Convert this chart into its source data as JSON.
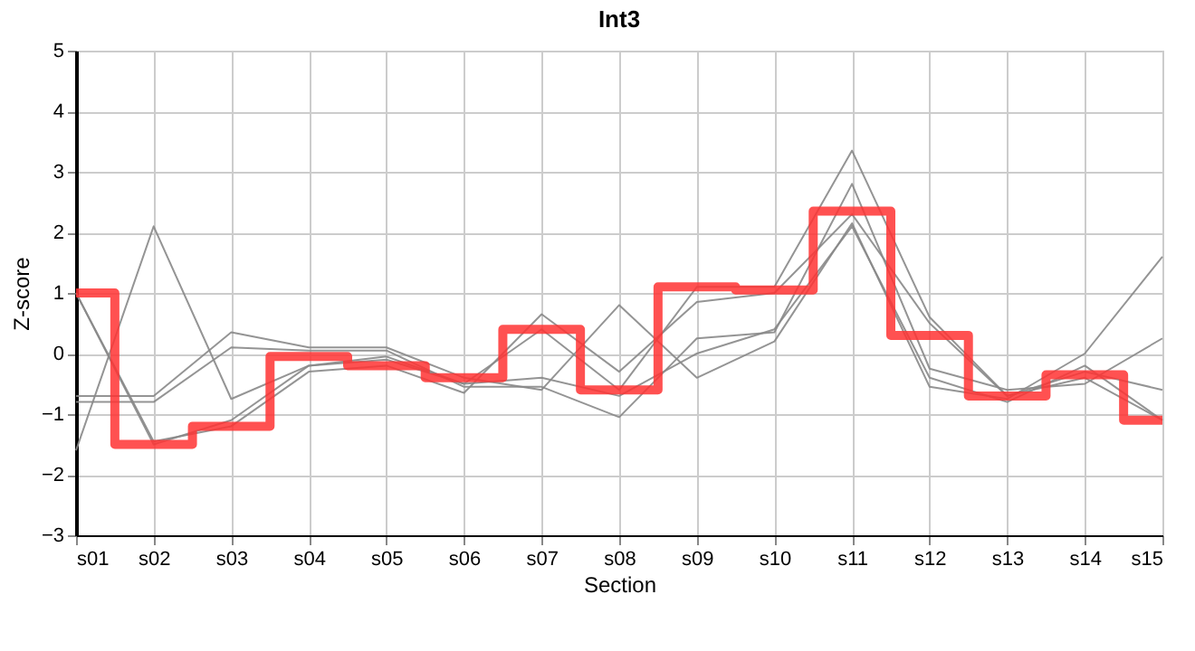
{
  "chart_data": {
    "type": "line",
    "title": "Int3",
    "xlabel": "Section",
    "ylabel": "Z-score",
    "categories": [
      "s01",
      "s02",
      "s03",
      "s04",
      "s05",
      "s06",
      "s07",
      "s08",
      "s09",
      "s10",
      "s11",
      "s12",
      "s13",
      "s14",
      "s15"
    ],
    "ylim": [
      -3,
      5
    ],
    "yticks": [
      -3,
      -2,
      -1,
      0,
      1,
      2,
      3,
      4,
      5
    ],
    "grid": true,
    "marker": "none",
    "line_style": "solid",
    "series": [
      {
        "color": "#888888",
        "values": [
          1.0,
          -1.45,
          -1.2,
          -0.3,
          -0.2,
          -0.65,
          0.65,
          -0.3,
          0.85,
          1.0,
          2.3,
          0.5,
          -0.7,
          -0.4,
          -1.1
        ]
      },
      {
        "color": "#888888",
        "values": [
          -1.6,
          2.1,
          -0.75,
          -0.2,
          -0.05,
          -0.5,
          0.4,
          -0.6,
          1.1,
          1.1,
          3.35,
          0.6,
          -0.7,
          -0.3,
          -0.6
        ]
      },
      {
        "color": "#888888",
        "values": [
          -0.7,
          -0.7,
          0.35,
          0.1,
          0.1,
          -0.4,
          -0.6,
          0.8,
          -0.4,
          0.2,
          2.15,
          -0.55,
          -0.75,
          0.0,
          1.6
        ]
      },
      {
        "color": "#888888",
        "values": [
          -0.8,
          -0.8,
          0.1,
          0.05,
          0.05,
          -0.55,
          -0.55,
          -1.05,
          0.25,
          0.35,
          2.8,
          -0.25,
          -0.6,
          -0.5,
          0.25
        ]
      },
      {
        "color": "#888888",
        "values": [
          1.0,
          -1.5,
          -1.1,
          -0.2,
          -0.1,
          -0.5,
          -0.4,
          -0.7,
          0.0,
          0.4,
          2.1,
          -0.4,
          -0.8,
          -0.2,
          -1.1
        ]
      },
      {
        "type": "step",
        "color": "#ff3333",
        "values": [
          1.0,
          -1.5,
          -1.2,
          -0.05,
          -0.2,
          -0.4,
          0.4,
          -0.6,
          1.1,
          1.05,
          2.35,
          0.3,
          -0.7,
          -0.35,
          -1.1
        ]
      }
    ]
  }
}
